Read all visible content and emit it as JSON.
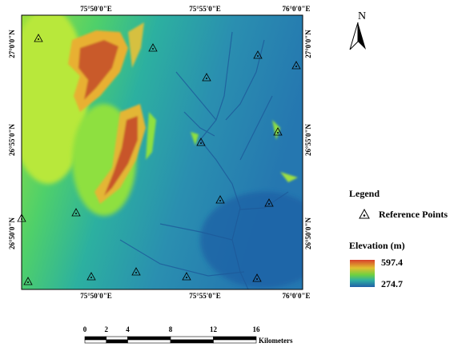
{
  "map": {
    "longitude_labels": [
      "75°50'0\"E",
      "75°55'0\"E",
      "76°0'0\"E"
    ],
    "latitude_labels": [
      "27°0'0\"N",
      "26°55'0\"N",
      "26°50'0\"N"
    ],
    "north_label": "N",
    "legend": {
      "title": "Legend",
      "reference_points": "Reference Points",
      "elevation_title": "Elevation (m)",
      "elevation_max": 597.4,
      "elevation_min": 274.7
    },
    "scale_bar": {
      "ticks": [
        0,
        2,
        4,
        8,
        12,
        16
      ],
      "unit": "Kilometers"
    }
  }
}
